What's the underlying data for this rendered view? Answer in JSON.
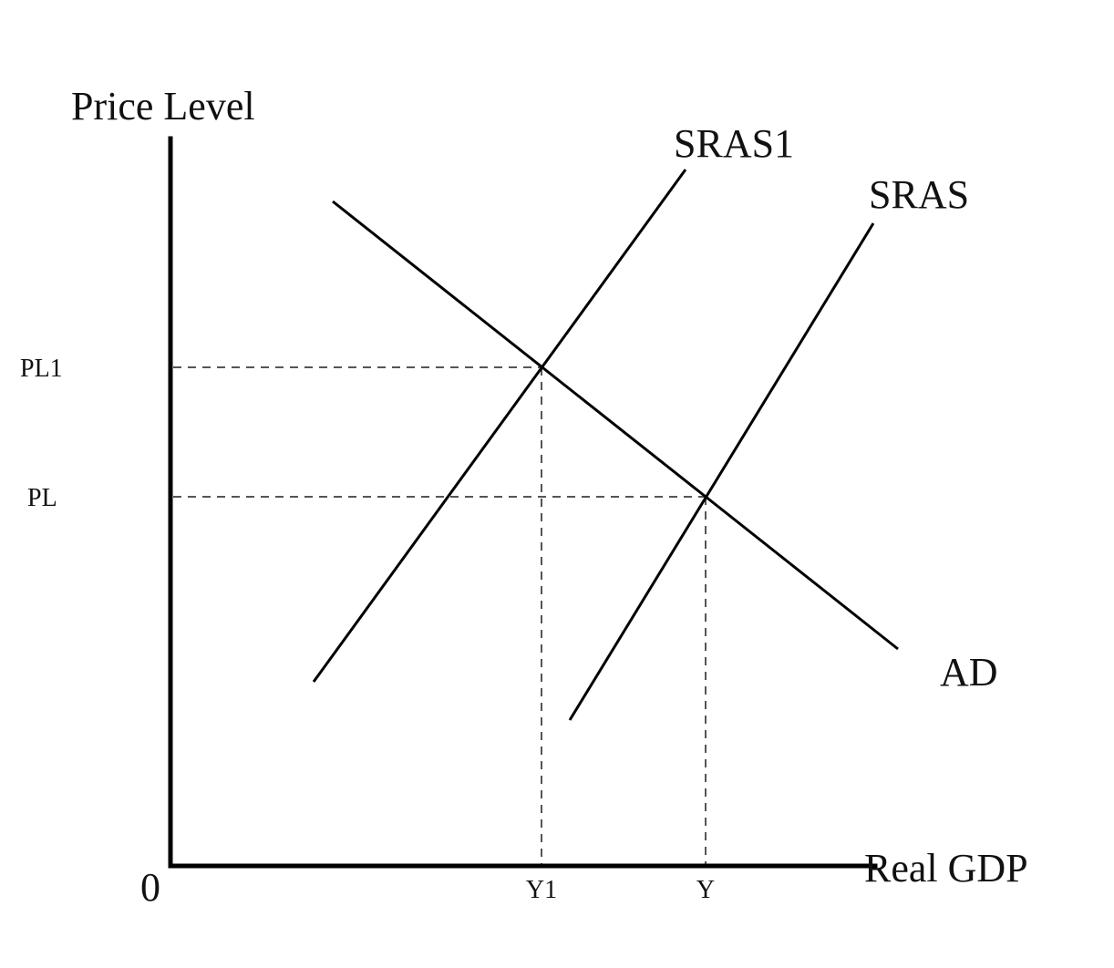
{
  "axes": {
    "y_label": "Price Level",
    "x_label": "Real GDP",
    "origin_label": "0"
  },
  "curves": {
    "sras1": "SRAS1",
    "sras": "SRAS",
    "ad": "AD"
  },
  "price_levels": {
    "pl1": "PL1",
    "pl": "PL"
  },
  "outputs": {
    "y1": "Y1",
    "y": "Y"
  },
  "colors": {
    "lines": "#000000",
    "guides": "#555555",
    "background": "#ffffff"
  }
}
